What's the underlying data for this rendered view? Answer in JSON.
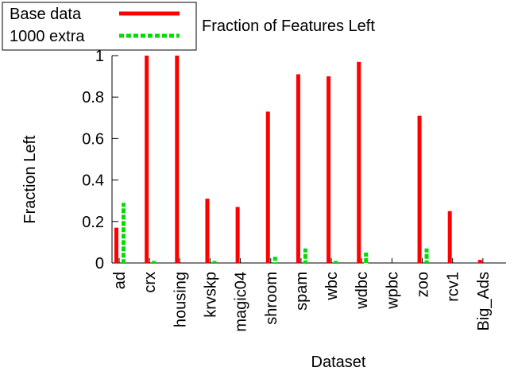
{
  "chart_data": {
    "type": "bar",
    "title": "Fraction of Features Left",
    "xlabel": "Dataset",
    "ylabel": "Fraction Left",
    "ylim": [
      0,
      1
    ],
    "yticks": [
      0,
      0.2,
      0.4,
      0.6,
      0.8,
      1
    ],
    "ytick_labels": [
      "0",
      "0.2",
      "0.4",
      "0.6",
      "0.8",
      "1"
    ],
    "categories": [
      "ad",
      "crx",
      "housing",
      "krvskp",
      "magic04",
      "shroom",
      "spam",
      "wbc",
      "wdbc",
      "wpbc",
      "zoo",
      "rcv1",
      "Big_Ads"
    ],
    "series": [
      {
        "name": "Base data",
        "color": "#ff0000",
        "style": "solid",
        "values": [
          0.17,
          1.0,
          1.0,
          0.31,
          0.27,
          0.73,
          0.91,
          0.9,
          0.97,
          0.0,
          0.71,
          0.25,
          0.015
        ]
      },
      {
        "name": "1000 extra",
        "color": "#00dd00",
        "style": "dashed",
        "values": [
          0.29,
          0.01,
          0.0,
          0.01,
          0.0,
          0.03,
          0.07,
          0.01,
          0.05,
          0.0,
          0.07,
          0.0,
          0.0
        ]
      }
    ],
    "legend_position": "top-left",
    "grid": false
  }
}
